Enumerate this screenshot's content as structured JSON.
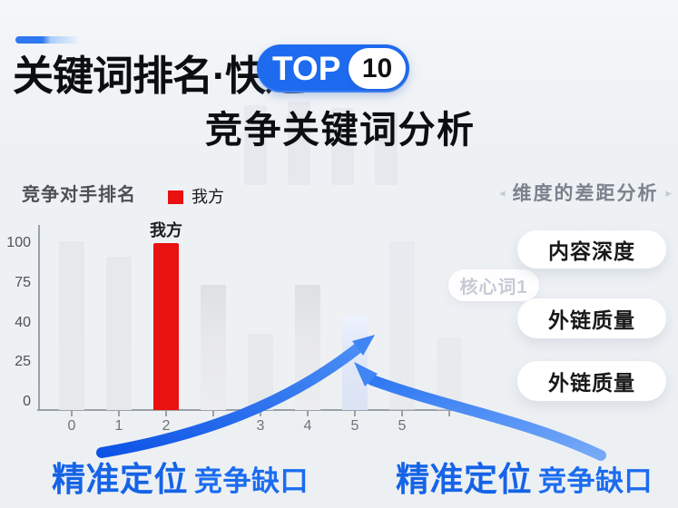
{
  "page": {
    "background": "#eef1f4"
  },
  "header": {
    "accent_color": "#2e78f2",
    "title_line1": "关键词排名·快速",
    "badge_top": "TOP",
    "badge_number": "10",
    "badge_color": "#1e6bf0",
    "title_line2": "竞争关键词分析"
  },
  "chart": {
    "section_label": "竞争对手排名",
    "legend_label": "我方",
    "legend_color": "#ea1111"
  },
  "chart_data": {
    "type": "bar",
    "title": "竞争对手排名",
    "x_tick_labels": [
      "0",
      "1",
      "2",
      "",
      "3",
      "4",
      "5",
      "5",
      ""
    ],
    "y_tick_labels": [
      "100",
      "75",
      "40",
      "25",
      "0"
    ],
    "ylim": [
      0,
      100
    ],
    "grid": false,
    "legend_position": "top",
    "legend": [
      {
        "name": "我方",
        "color": "#ea1111"
      }
    ],
    "bars": [
      {
        "x": "0",
        "value": 100,
        "style": "gray"
      },
      {
        "x": "1",
        "value": 91,
        "style": "gray"
      },
      {
        "x": "2",
        "value": 99,
        "style": "red",
        "label": "我方"
      },
      {
        "x": "",
        "value": 74,
        "style": "gray_shaded"
      },
      {
        "x": "3",
        "value": 45,
        "style": "gray"
      },
      {
        "x": "4",
        "value": 74,
        "style": "gray_shaded"
      },
      {
        "x": "5",
        "value": 56,
        "style": "blue_highlight"
      },
      {
        "x": "5",
        "value": 100,
        "style": "ghost"
      },
      {
        "x": "",
        "value": 43,
        "style": "ghost"
      }
    ]
  },
  "right_panel": {
    "header": "维度的差距分析",
    "left_arrow": "◂",
    "right_arrow": "▸",
    "faded_chip": "核心词1",
    "buttons": [
      "内容深度",
      "外链质量",
      "外链质量"
    ]
  },
  "callouts": {
    "left_strong": "精准定位",
    "left_rest": "竞争缺口",
    "right_strong": "精准定位",
    "right_rest": "竞争缺口"
  },
  "colors": {
    "arrow_blue_dark": "#0d53e6",
    "arrow_blue_light": "#76a9f8",
    "callout_blue": "#1563e7",
    "our_red": "#ea1111"
  }
}
